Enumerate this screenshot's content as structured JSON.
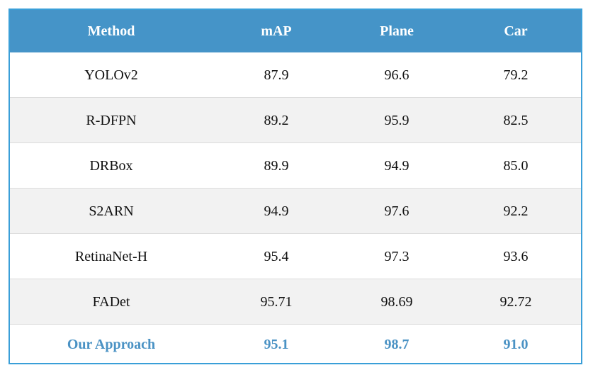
{
  "table": {
    "headers": [
      "Method",
      "mAP",
      "Plane",
      "Car"
    ],
    "rows": [
      [
        "YOLOv2",
        "87.9",
        "96.6",
        "79.2"
      ],
      [
        "R-DFPN",
        "89.2",
        "95.9",
        "82.5"
      ],
      [
        "DRBox",
        "89.9",
        "94.9",
        "85.0"
      ],
      [
        "S2ARN",
        "94.9",
        "97.6",
        "92.2"
      ],
      [
        "RetinaNet-H",
        "95.4",
        "97.3",
        "93.6"
      ],
      [
        "FADet",
        "95.71",
        "98.69",
        "92.72"
      ],
      [
        "Our Approach",
        "95.1",
        "98.7",
        "91.0"
      ]
    ]
  },
  "colors": {
    "border": "#3a9fd8",
    "header_bg": "#4594c8",
    "highlight_text": "#4a92c4",
    "alt_row_bg": "#f2f2f2"
  }
}
